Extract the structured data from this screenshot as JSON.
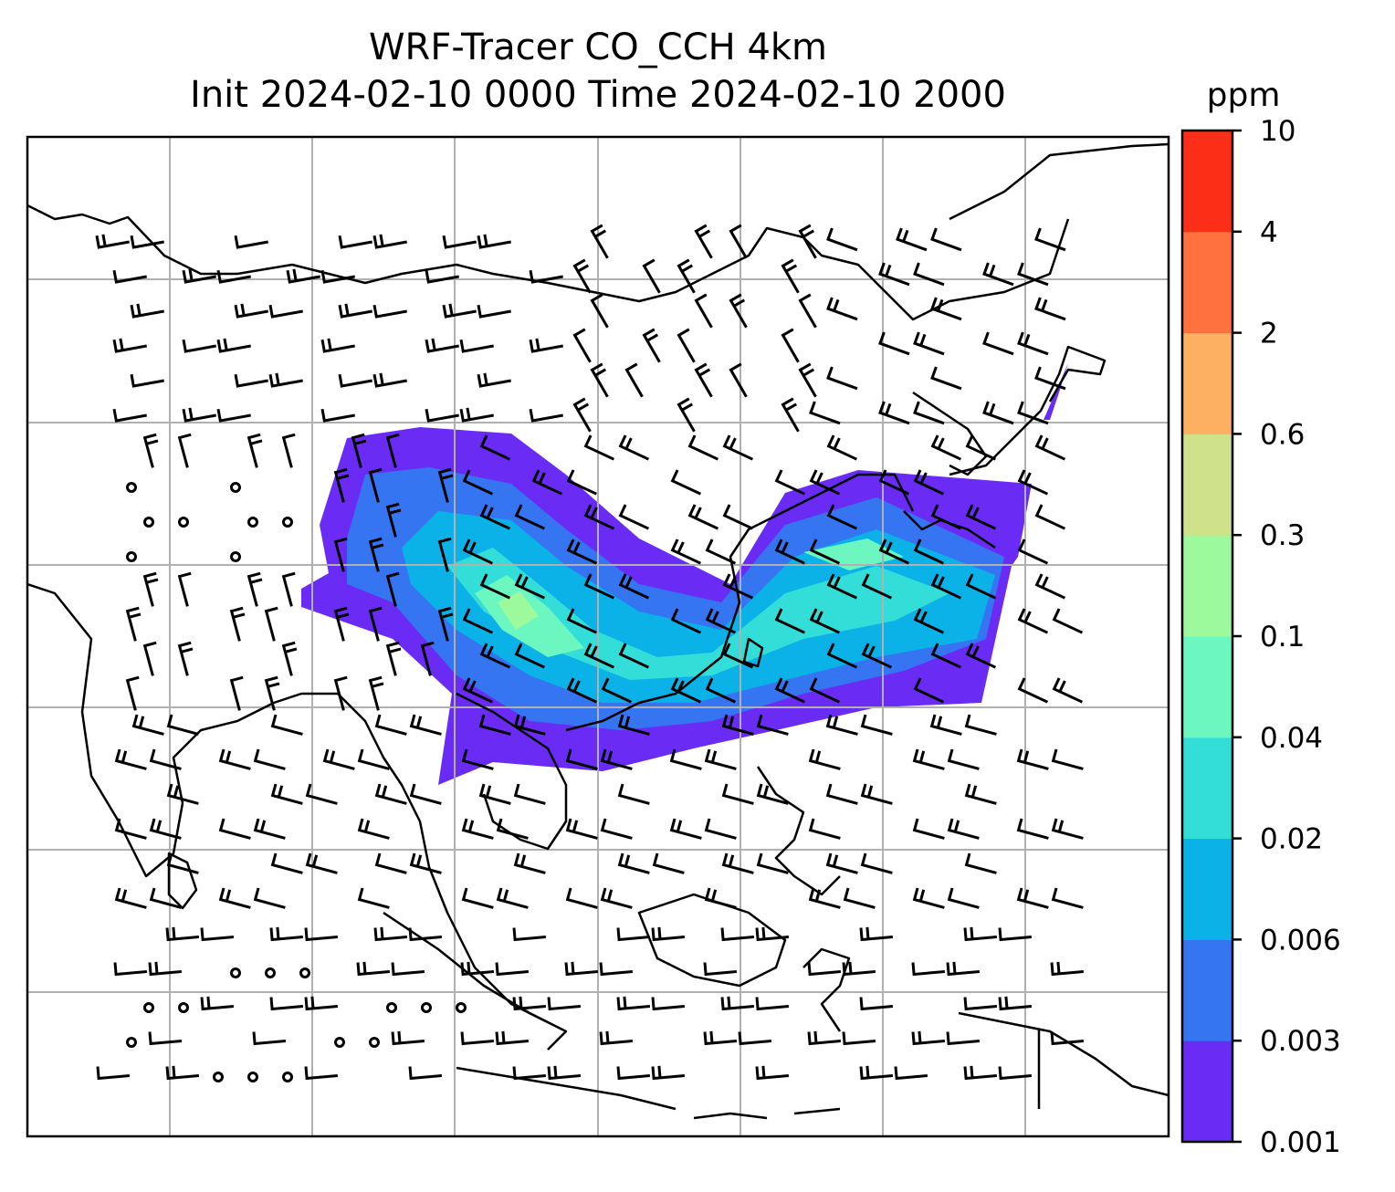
{
  "chart_data": {
    "type": "heatmap",
    "title": "WRF-Tracer CO_CCH 4km",
    "subtitle": "Init 2024-02-10 0000 Time 2024-02-10 2000",
    "colorbar": {
      "unit": "ppm",
      "levels": [
        "0.001",
        "0.003",
        "0.006",
        "0.02",
        "0.04",
        "0.1",
        "0.3",
        "0.6",
        "2",
        "4",
        "10"
      ],
      "colors": [
        "#6a2cf5",
        "#3575f2",
        "#0bb2e8",
        "#33ded8",
        "#6cf7c0",
        "#9cf99c",
        "#cfe28a",
        "#fdb061",
        "#ff723d",
        "#fd2e17"
      ]
    },
    "grid": true,
    "overlays": [
      "coastlines",
      "wind-barbs"
    ]
  }
}
